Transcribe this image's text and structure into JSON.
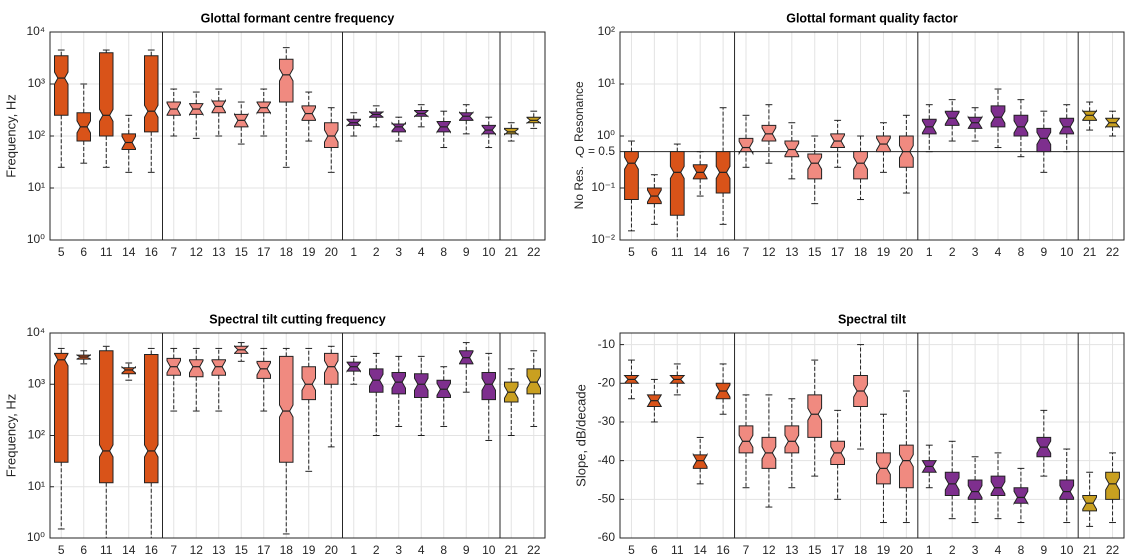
{
  "chart_data": [
    {
      "type": "box",
      "title": "Glottal formant centre frequency",
      "ylabel": "Frequency, Hz",
      "log_scale": true,
      "grid": true,
      "ylim": [
        1,
        10000
      ],
      "yticks": [
        {
          "value": 1,
          "label": "10⁰"
        },
        {
          "value": 10,
          "label": "10¹"
        },
        {
          "value": 100,
          "label": "10²"
        },
        {
          "value": 1000,
          "label": "10³"
        },
        {
          "value": 10000,
          "label": "10⁴"
        }
      ],
      "categories": [
        "5",
        "6",
        "11",
        "14",
        "16",
        "7",
        "12",
        "13",
        "15",
        "17",
        "18",
        "19",
        "20",
        "1",
        "2",
        "3",
        "4",
        "8",
        "9",
        "10",
        "21",
        "22"
      ],
      "boxes": [
        {
          "color": "#d95319",
          "whislo": 25,
          "q1": 250,
          "median": 1300,
          "q3": 3500,
          "whishi": 4500
        },
        {
          "color": "#d95319",
          "whislo": 30,
          "q1": 80,
          "median": 150,
          "q3": 280,
          "whishi": 1000
        },
        {
          "color": "#d95319",
          "whislo": 25,
          "q1": 100,
          "median": 250,
          "q3": 4000,
          "whishi": 4500
        },
        {
          "color": "#d95319",
          "whislo": 20,
          "q1": 55,
          "median": 75,
          "q3": 110,
          "whishi": 250
        },
        {
          "color": "#d95319",
          "whislo": 20,
          "q1": 120,
          "median": 300,
          "q3": 3500,
          "whishi": 4500
        },
        {
          "color": "#f08a80",
          "whislo": 100,
          "q1": 250,
          "median": 330,
          "q3": 450,
          "whishi": 800
        },
        {
          "color": "#f08a80",
          "whislo": 90,
          "q1": 260,
          "median": 330,
          "q3": 420,
          "whishi": 700
        },
        {
          "color": "#f08a80",
          "whislo": 100,
          "q1": 280,
          "median": 370,
          "q3": 470,
          "whishi": 800
        },
        {
          "color": "#f08a80",
          "whislo": 70,
          "q1": 150,
          "median": 200,
          "q3": 260,
          "whishi": 450
        },
        {
          "color": "#f08a80",
          "whislo": 100,
          "q1": 280,
          "median": 350,
          "q3": 450,
          "whishi": 800
        },
        {
          "color": "#f08a80",
          "whislo": 25,
          "q1": 450,
          "median": 1500,
          "q3": 3000,
          "whishi": 5000
        },
        {
          "color": "#f08a80",
          "whislo": 80,
          "q1": 200,
          "median": 270,
          "q3": 380,
          "whishi": 700
        },
        {
          "color": "#f08a80",
          "whislo": 20,
          "q1": 60,
          "median": 100,
          "q3": 180,
          "whishi": 350
        },
        {
          "color": "#7e2f8e",
          "whislo": 100,
          "q1": 160,
          "median": 180,
          "q3": 210,
          "whishi": 280
        },
        {
          "color": "#7e2f8e",
          "whislo": 150,
          "q1": 230,
          "median": 260,
          "q3": 290,
          "whishi": 380
        },
        {
          "color": "#7e2f8e",
          "whislo": 80,
          "q1": 120,
          "median": 150,
          "q3": 170,
          "whishi": 230
        },
        {
          "color": "#7e2f8e",
          "whislo": 150,
          "q1": 240,
          "median": 270,
          "q3": 310,
          "whishi": 400
        },
        {
          "color": "#7e2f8e",
          "whislo": 60,
          "q1": 120,
          "median": 150,
          "q3": 190,
          "whishi": 300
        },
        {
          "color": "#7e2f8e",
          "whislo": 110,
          "q1": 200,
          "median": 240,
          "q3": 280,
          "whishi": 400
        },
        {
          "color": "#7e2f8e",
          "whislo": 60,
          "q1": 110,
          "median": 130,
          "q3": 160,
          "whishi": 230
        },
        {
          "color": "#c9a020",
          "whislo": 80,
          "q1": 110,
          "median": 120,
          "q3": 140,
          "whishi": 180
        },
        {
          "color": "#c9a020",
          "whislo": 140,
          "q1": 180,
          "median": 200,
          "q3": 230,
          "whishi": 300
        }
      ]
    },
    {
      "type": "box",
      "title": "Glottal formant quality factor",
      "log_scale": true,
      "grid": true,
      "ylim": [
        0.01,
        100
      ],
      "yticks": [
        {
          "value": 0.01,
          "label": "10⁻²"
        },
        {
          "value": 0.1,
          "label": "10⁻¹"
        },
        {
          "value": 1,
          "label": "10⁰"
        },
        {
          "value": 10,
          "label": "10¹"
        },
        {
          "value": 100,
          "label": "10²"
        }
      ],
      "hline": {
        "value": 0.5,
        "label": "Q = 0.5"
      },
      "annotations": [
        "Resonance",
        "No Res."
      ],
      "categories": [
        "5",
        "6",
        "11",
        "14",
        "16",
        "7",
        "12",
        "13",
        "15",
        "17",
        "18",
        "19",
        "20",
        "1",
        "2",
        "3",
        "4",
        "8",
        "9",
        "10",
        "21",
        "22"
      ],
      "boxes": [
        {
          "color": "#d95319",
          "whislo": 0.015,
          "q1": 0.06,
          "median": 0.3,
          "q3": 0.5,
          "whishi": 0.8
        },
        {
          "color": "#d95319",
          "whislo": 0.02,
          "q1": 0.05,
          "median": 0.07,
          "q3": 0.1,
          "whishi": 0.18
        },
        {
          "color": "#d95319",
          "whislo": 0.01,
          "q1": 0.03,
          "median": 0.2,
          "q3": 0.5,
          "whishi": 0.7
        },
        {
          "color": "#d95319",
          "whislo": 0.07,
          "q1": 0.15,
          "median": 0.2,
          "q3": 0.28,
          "whishi": 0.5
        },
        {
          "color": "#d95319",
          "whislo": 0.02,
          "q1": 0.08,
          "median": 0.2,
          "q3": 0.5,
          "whishi": 3.5
        },
        {
          "color": "#f08a80",
          "whislo": 0.25,
          "q1": 0.5,
          "median": 0.6,
          "q3": 0.9,
          "whishi": 2.5
        },
        {
          "color": "#f08a80",
          "whislo": 0.3,
          "q1": 0.8,
          "median": 1.1,
          "q3": 1.6,
          "whishi": 4
        },
        {
          "color": "#f08a80",
          "whislo": 0.15,
          "q1": 0.4,
          "median": 0.55,
          "q3": 0.8,
          "whishi": 1.8
        },
        {
          "color": "#f08a80",
          "whislo": 0.05,
          "q1": 0.15,
          "median": 0.3,
          "q3": 0.45,
          "whishi": 1
        },
        {
          "color": "#f08a80",
          "whislo": 0.25,
          "q1": 0.6,
          "median": 0.8,
          "q3": 1.1,
          "whishi": 2
        },
        {
          "color": "#f08a80",
          "whislo": 0.06,
          "q1": 0.15,
          "median": 0.3,
          "q3": 0.5,
          "whishi": 1
        },
        {
          "color": "#f08a80",
          "whislo": 0.2,
          "q1": 0.5,
          "median": 0.7,
          "q3": 1,
          "whishi": 1.8
        },
        {
          "color": "#f08a80",
          "whislo": 0.08,
          "q1": 0.25,
          "median": 0.5,
          "q3": 1,
          "whishi": 2.5
        },
        {
          "color": "#7e2f8e",
          "whislo": 0.5,
          "q1": 1.1,
          "median": 1.5,
          "q3": 2.1,
          "whishi": 4
        },
        {
          "color": "#7e2f8e",
          "whislo": 0.8,
          "q1": 1.6,
          "median": 2.2,
          "q3": 3,
          "whishi": 5
        },
        {
          "color": "#7e2f8e",
          "whislo": 0.8,
          "q1": 1.4,
          "median": 1.8,
          "q3": 2.3,
          "whishi": 3.5
        },
        {
          "color": "#7e2f8e",
          "whislo": 0.6,
          "q1": 1.5,
          "median": 2.3,
          "q3": 3.8,
          "whishi": 8
        },
        {
          "color": "#7e2f8e",
          "whislo": 0.4,
          "q1": 1,
          "median": 1.5,
          "q3": 2.5,
          "whishi": 5
        },
        {
          "color": "#7e2f8e",
          "whislo": 0.2,
          "q1": 0.5,
          "median": 0.9,
          "q3": 1.4,
          "whishi": 3
        },
        {
          "color": "#7e2f8e",
          "whislo": 0.5,
          "q1": 1.1,
          "median": 1.5,
          "q3": 2.2,
          "whishi": 4
        },
        {
          "color": "#c9a020",
          "whislo": 1.3,
          "q1": 2,
          "median": 2.5,
          "q3": 3,
          "whishi": 4.5
        },
        {
          "color": "#c9a020",
          "whislo": 1,
          "q1": 1.5,
          "median": 1.8,
          "q3": 2.2,
          "whishi": 3
        }
      ]
    },
    {
      "type": "box",
      "title": "Spectral tilt cutting frequency",
      "ylabel": "Frequency, Hz",
      "log_scale": true,
      "grid": true,
      "ylim": [
        1,
        10000
      ],
      "yticks": [
        {
          "value": 1,
          "label": "10⁰"
        },
        {
          "value": 10,
          "label": "10¹"
        },
        {
          "value": 100,
          "label": "10²"
        },
        {
          "value": 1000,
          "label": "10³"
        },
        {
          "value": 10000,
          "label": "10⁴"
        }
      ],
      "categories": [
        "5",
        "6",
        "11",
        "14",
        "16",
        "7",
        "12",
        "13",
        "15",
        "17",
        "18",
        "19",
        "20",
        "1",
        "2",
        "3",
        "4",
        "8",
        "9",
        "10",
        "21",
        "22"
      ],
      "boxes": [
        {
          "color": "#d95319",
          "whislo": 1.5,
          "q1": 30,
          "median": 3000,
          "q3": 4000,
          "whishi": 5000
        },
        {
          "color": "#d95319",
          "whislo": 2500,
          "q1": 3100,
          "median": 3400,
          "q3": 3700,
          "whishi": 4500
        },
        {
          "color": "#d95319",
          "whislo": 1,
          "q1": 12,
          "median": 50,
          "q3": 4500,
          "whishi": 5500
        },
        {
          "color": "#d95319",
          "whislo": 1200,
          "q1": 1600,
          "median": 1900,
          "q3": 2100,
          "whishi": 2600
        },
        {
          "color": "#d95319",
          "whislo": 1,
          "q1": 12,
          "median": 50,
          "q3": 3800,
          "whishi": 5000
        },
        {
          "color": "#f08a80",
          "whislo": 300,
          "q1": 1500,
          "median": 2200,
          "q3": 3200,
          "whishi": 5000
        },
        {
          "color": "#f08a80",
          "whislo": 300,
          "q1": 1400,
          "median": 2200,
          "q3": 3000,
          "whishi": 5000
        },
        {
          "color": "#f08a80",
          "whislo": 300,
          "q1": 1500,
          "median": 2200,
          "q3": 3000,
          "whishi": 5000
        },
        {
          "color": "#f08a80",
          "whislo": 2800,
          "q1": 4000,
          "median": 4700,
          "q3": 5500,
          "whishi": 6500
        },
        {
          "color": "#f08a80",
          "whislo": 300,
          "q1": 1300,
          "median": 2000,
          "q3": 2800,
          "whishi": 5000
        },
        {
          "color": "#f08a80",
          "whislo": 1.2,
          "q1": 30,
          "median": 300,
          "q3": 3500,
          "whishi": 5000
        },
        {
          "color": "#f08a80",
          "whislo": 20,
          "q1": 500,
          "median": 1000,
          "q3": 2200,
          "whishi": 5000
        },
        {
          "color": "#f08a80",
          "whislo": 60,
          "q1": 1000,
          "median": 2200,
          "q3": 4000,
          "whishi": 5500
        },
        {
          "color": "#7e2f8e",
          "whislo": 1000,
          "q1": 1800,
          "median": 2200,
          "q3": 2700,
          "whishi": 3500
        },
        {
          "color": "#7e2f8e",
          "whislo": 100,
          "q1": 700,
          "median": 1200,
          "q3": 2000,
          "whishi": 4000
        },
        {
          "color": "#7e2f8e",
          "whislo": 150,
          "q1": 650,
          "median": 1100,
          "q3": 1700,
          "whishi": 3500
        },
        {
          "color": "#7e2f8e",
          "whislo": 100,
          "q1": 550,
          "median": 1000,
          "q3": 1600,
          "whishi": 3500
        },
        {
          "color": "#7e2f8e",
          "whislo": 150,
          "q1": 550,
          "median": 800,
          "q3": 1200,
          "whishi": 2200
        },
        {
          "color": "#7e2f8e",
          "whislo": 700,
          "q1": 2500,
          "median": 3300,
          "q3": 4500,
          "whishi": 6500
        },
        {
          "color": "#7e2f8e",
          "whislo": 80,
          "q1": 500,
          "median": 1000,
          "q3": 1700,
          "whishi": 4000
        },
        {
          "color": "#c9a020",
          "whislo": 100,
          "q1": 450,
          "median": 700,
          "q3": 1100,
          "whishi": 2000
        },
        {
          "color": "#c9a020",
          "whislo": 150,
          "q1": 650,
          "median": 1100,
          "q3": 2000,
          "whishi": 4500
        }
      ]
    },
    {
      "type": "box",
      "title": "Spectral tilt",
      "ylabel": "Slope, dB/decade",
      "log_scale": false,
      "grid": true,
      "ylim": [
        -60,
        -7
      ],
      "yticks": [
        -60,
        -50,
        -40,
        -30,
        -20,
        -10
      ],
      "categories": [
        "5",
        "6",
        "11",
        "14",
        "16",
        "7",
        "12",
        "13",
        "15",
        "17",
        "18",
        "19",
        "20",
        "1",
        "2",
        "3",
        "4",
        "8",
        "9",
        "10",
        "21",
        "22"
      ],
      "boxes": [
        {
          "color": "#d95319",
          "whislo": -24,
          "q1": -20,
          "median": -19,
          "q3": -18,
          "whishi": -14
        },
        {
          "color": "#d95319",
          "whislo": -30,
          "q1": -26,
          "median": -24.5,
          "q3": -23,
          "whishi": -19
        },
        {
          "color": "#d95319",
          "whislo": -23,
          "q1": -20,
          "median": -19,
          "q3": -18,
          "whishi": -15
        },
        {
          "color": "#d95319",
          "whislo": -46,
          "q1": -42,
          "median": -40,
          "q3": -38.5,
          "whishi": -34
        },
        {
          "color": "#d95319",
          "whislo": -28,
          "q1": -24,
          "median": -22,
          "q3": -20,
          "whishi": -15
        },
        {
          "color": "#f08a80",
          "whislo": -47,
          "q1": -38,
          "median": -35,
          "q3": -31,
          "whishi": -23
        },
        {
          "color": "#f08a80",
          "whislo": -52,
          "q1": -42,
          "median": -38,
          "q3": -34,
          "whishi": -23
        },
        {
          "color": "#f08a80",
          "whislo": -47,
          "q1": -38,
          "median": -35,
          "q3": -31,
          "whishi": -24
        },
        {
          "color": "#f08a80",
          "whislo": -44,
          "q1": -34,
          "median": -28,
          "q3": -23,
          "whishi": -14
        },
        {
          "color": "#f08a80",
          "whislo": -50,
          "q1": -41,
          "median": -38,
          "q3": -35,
          "whishi": -27
        },
        {
          "color": "#f08a80",
          "whislo": -37,
          "q1": -26,
          "median": -22,
          "q3": -18,
          "whishi": -10
        },
        {
          "color": "#f08a80",
          "whislo": -56,
          "q1": -46,
          "median": -42,
          "q3": -38,
          "whishi": -28
        },
        {
          "color": "#f08a80",
          "whislo": -56,
          "q1": -47,
          "median": -40,
          "q3": -36,
          "whishi": -22
        },
        {
          "color": "#7e2f8e",
          "whislo": -47,
          "q1": -43,
          "median": -41.5,
          "q3": -40,
          "whishi": -36
        },
        {
          "color": "#7e2f8e",
          "whislo": -55,
          "q1": -49,
          "median": -46,
          "q3": -43,
          "whishi": -35
        },
        {
          "color": "#7e2f8e",
          "whislo": -56,
          "q1": -50,
          "median": -48,
          "q3": -45,
          "whishi": -39
        },
        {
          "color": "#7e2f8e",
          "whislo": -55,
          "q1": -49,
          "median": -47,
          "q3": -44,
          "whishi": -38
        },
        {
          "color": "#7e2f8e",
          "whislo": -56,
          "q1": -51,
          "median": -49.5,
          "q3": -47,
          "whishi": -42
        },
        {
          "color": "#7e2f8e",
          "whislo": -44,
          "q1": -39,
          "median": -36.5,
          "q3": -34,
          "whishi": -27
        },
        {
          "color": "#7e2f8e",
          "whislo": -56,
          "q1": -50,
          "median": -48,
          "q3": -45,
          "whishi": -37
        },
        {
          "color": "#c9a020",
          "whislo": -57,
          "q1": -53,
          "median": -51,
          "q3": -49,
          "whishi": -43
        },
        {
          "color": "#c9a020",
          "whislo": -56,
          "q1": -50,
          "median": -46,
          "q3": -43,
          "whishi": -38
        }
      ]
    }
  ]
}
